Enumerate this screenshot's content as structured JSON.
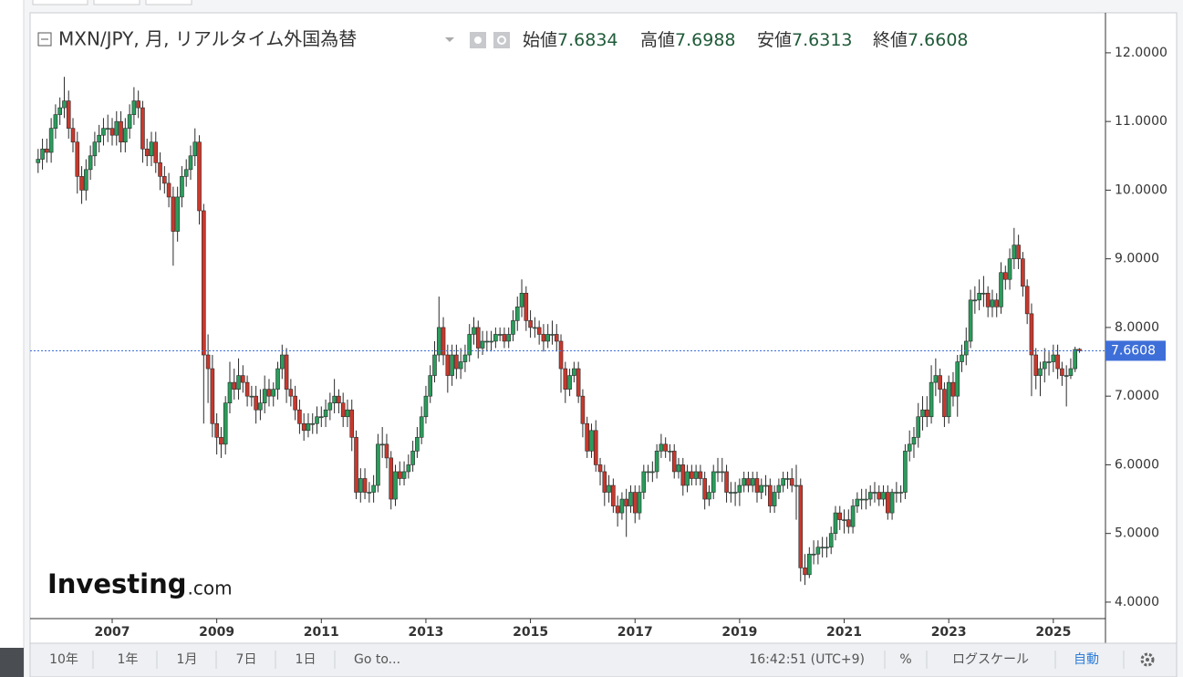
{
  "chart_data": {
    "type": "candlestick",
    "title": "MXN/JPY, 月, リアルタイム外国為替",
    "ohlc_labels": {
      "open": "始値",
      "high": "高値",
      "low": "安値",
      "close": "終値"
    },
    "categories": [
      null,
      null,
      null,
      null,
      null,
      null,
      null,
      null,
      null,
      null,
      null,
      null,
      null,
      null,
      null,
      null,
      null,
      "2007",
      null,
      null,
      null,
      null,
      null,
      null,
      null,
      null,
      null,
      null,
      null,
      null,
      null,
      null,
      null,
      null,
      null,
      null,
      null,
      null,
      null,
      null,
      null,
      "2009",
      null,
      null,
      null,
      null,
      null,
      null,
      null,
      null,
      null,
      null,
      null,
      null,
      null,
      null,
      null,
      null,
      null,
      null,
      null,
      null,
      null,
      null,
      null,
      "2011",
      null,
      null,
      null,
      null,
      null,
      null,
      null,
      null,
      null,
      null,
      null,
      null,
      null,
      null,
      null,
      null,
      null,
      null,
      null,
      null,
      null,
      null,
      null,
      "2013",
      null,
      null,
      null,
      null,
      null,
      null,
      null,
      null,
      null,
      null,
      null,
      null,
      null,
      null,
      null,
      null,
      null,
      null,
      null,
      null,
      null,
      null,
      null,
      "2015",
      null,
      null,
      null,
      null,
      null,
      null,
      null,
      null,
      null,
      null,
      null,
      null,
      null,
      null,
      null,
      null,
      null,
      null,
      null,
      null,
      null,
      null,
      null,
      "2017",
      null,
      null,
      null,
      null,
      null,
      null,
      null,
      null,
      null,
      null,
      null,
      null,
      null,
      null,
      null,
      null,
      null,
      null,
      null,
      null,
      null,
      null,
      null,
      "2019",
      null,
      null,
      null,
      null,
      null,
      null,
      null,
      null,
      null,
      null,
      null,
      null,
      null,
      null,
      null,
      null,
      null,
      null,
      null,
      null,
      null,
      null,
      null,
      "2021",
      null,
      null,
      null,
      null,
      null,
      null,
      null,
      null,
      null,
      null,
      null,
      null,
      null,
      null,
      null,
      null,
      null,
      null,
      null,
      null,
      null,
      null,
      null,
      "2023",
      null,
      null,
      null,
      null,
      null,
      null,
      null,
      null,
      null,
      null,
      null,
      null,
      null,
      null,
      null,
      null,
      null,
      null,
      null,
      null,
      null,
      null,
      null,
      "2025",
      null,
      null,
      null,
      null,
      null,
      null
    ],
    "open": [
      10.4,
      10.45,
      10.6,
      10.55,
      10.9,
      11.1,
      11.2,
      11.3,
      10.9,
      10.7,
      10.2,
      10.0,
      10.3,
      10.5,
      10.7,
      10.8,
      10.9,
      10.9,
      10.8,
      11.0,
      10.7,
      10.9,
      11.1,
      11.3,
      11.2,
      10.6,
      10.5,
      10.7,
      10.4,
      10.2,
      10.1,
      9.9,
      9.4,
      9.9,
      10.2,
      10.3,
      10.5,
      10.7,
      9.7,
      7.6,
      7.4,
      6.6,
      6.4,
      6.3,
      6.9,
      7.2,
      7.1,
      7.3,
      7.2,
      7.0,
      7.0,
      6.8,
      6.9,
      7.1,
      7.0,
      7.1,
      7.4,
      7.6,
      7.1,
      7.0,
      6.8,
      6.6,
      6.5,
      6.6,
      6.6,
      6.7,
      6.7,
      6.8,
      6.9,
      7.0,
      6.9,
      6.7,
      6.8,
      6.4,
      5.6,
      5.8,
      5.6,
      5.6,
      5.7,
      6.3,
      6.3,
      6.1,
      5.5,
      5.9,
      5.8,
      5.9,
      6.0,
      6.2,
      6.4,
      6.7,
      7.0,
      7.3,
      7.6,
      8.0,
      7.6,
      7.3,
      7.6,
      7.4,
      7.5,
      7.6,
      7.9,
      8.0,
      7.7,
      7.8,
      7.8,
      7.8,
      7.9,
      7.9,
      7.8,
      7.9,
      8.1,
      8.3,
      8.5,
      8.1,
      8.0,
      8.0,
      7.9,
      7.8,
      7.9,
      7.9,
      7.8,
      7.4,
      7.1,
      7.3,
      7.4,
      7.0,
      6.6,
      6.2,
      6.5,
      6.0,
      5.9,
      5.6,
      5.7,
      5.4,
      5.3,
      5.5,
      5.4,
      5.6,
      5.3,
      5.6,
      5.9,
      5.9,
      5.9,
      6.2,
      6.3,
      6.2,
      6.2,
      5.9,
      6.0,
      5.7,
      5.9,
      5.8,
      5.9,
      5.8,
      5.5,
      5.6,
      5.9,
      5.9,
      5.9,
      5.6,
      5.6,
      5.6,
      5.7,
      5.8,
      5.7,
      5.8,
      5.6,
      5.7,
      5.7,
      5.4,
      5.6,
      5.7,
      5.8,
      5.8,
      5.7,
      5.7,
      4.5,
      4.4,
      4.7,
      4.7,
      4.8,
      4.8,
      4.8,
      5.0,
      5.3,
      5.2,
      5.2,
      5.1,
      5.4,
      5.5,
      5.5,
      5.5,
      5.6,
      5.6,
      5.5,
      5.6,
      5.3,
      5.6,
      5.6,
      5.6,
      6.2,
      6.3,
      6.4,
      6.7,
      6.8,
      6.7,
      7.2,
      7.3,
      7.1,
      6.7,
      7.2,
      7.0,
      7.5,
      7.6,
      7.8,
      8.4,
      8.4,
      8.5,
      8.5,
      8.3,
      8.4,
      8.3,
      8.8,
      8.7,
      9.0,
      9.2,
      9.0,
      8.6,
      8.2,
      7.6,
      7.3,
      7.4,
      7.5,
      7.5,
      7.6,
      7.4,
      7.3,
      7.3,
      7.4,
      7.6834
    ],
    "high": [
      10.6,
      10.75,
      10.75,
      11.05,
      11.25,
      11.35,
      11.65,
      11.45,
      11.05,
      10.85,
      10.35,
      10.45,
      10.65,
      10.85,
      10.95,
      11.05,
      11.1,
      11.05,
      11.15,
      11.15,
      11.05,
      11.25,
      11.5,
      11.45,
      11.3,
      10.75,
      10.85,
      10.85,
      10.55,
      10.35,
      10.25,
      10.05,
      10.05,
      10.35,
      10.45,
      10.65,
      10.9,
      10.8,
      9.8,
      7.9,
      7.6,
      6.75,
      6.55,
      7.0,
      7.5,
      7.4,
      7.55,
      7.45,
      7.3,
      7.15,
      7.15,
      7.1,
      7.3,
      7.25,
      7.2,
      7.5,
      7.75,
      7.7,
      7.25,
      7.15,
      6.95,
      6.75,
      6.75,
      6.75,
      6.85,
      6.85,
      6.95,
      7.05,
      7.25,
      7.1,
      7.05,
      6.95,
      6.95,
      6.5,
      5.95,
      5.95,
      5.75,
      5.85,
      6.45,
      6.55,
      6.45,
      6.2,
      6.0,
      6.05,
      6.05,
      6.15,
      6.35,
      6.55,
      6.85,
      7.15,
      7.45,
      7.8,
      8.45,
      8.15,
      7.75,
      7.75,
      7.75,
      7.7,
      7.75,
      8.05,
      8.15,
      8.1,
      7.95,
      7.95,
      7.95,
      8.0,
      8.0,
      8.0,
      8.0,
      8.25,
      8.45,
      8.7,
      8.6,
      8.25,
      8.15,
      8.1,
      8.05,
      8.05,
      8.1,
      8.05,
      7.9,
      7.5,
      7.4,
      7.5,
      7.5,
      7.1,
      6.7,
      6.6,
      6.65,
      6.1,
      6.0,
      5.85,
      5.8,
      5.55,
      5.6,
      5.65,
      5.7,
      5.7,
      5.7,
      6.0,
      6.0,
      6.05,
      6.3,
      6.45,
      6.4,
      6.3,
      6.3,
      6.1,
      6.1,
      6.0,
      6.0,
      6.0,
      6.0,
      5.9,
      5.7,
      6.0,
      6.1,
      6.1,
      6.0,
      5.75,
      5.75,
      5.8,
      5.9,
      5.9,
      5.9,
      5.9,
      5.8,
      5.85,
      5.8,
      5.7,
      5.8,
      5.9,
      5.9,
      5.95,
      6.0,
      5.8,
      4.7,
      4.8,
      4.9,
      4.9,
      4.95,
      4.95,
      5.1,
      5.4,
      5.4,
      5.35,
      5.35,
      5.5,
      5.6,
      5.65,
      5.65,
      5.7,
      5.75,
      5.7,
      5.7,
      5.7,
      5.65,
      5.75,
      5.7,
      6.3,
      6.5,
      6.55,
      6.9,
      7.0,
      7.0,
      7.45,
      7.55,
      7.4,
      7.2,
      7.3,
      7.35,
      7.6,
      7.75,
      8.0,
      8.55,
      8.6,
      8.7,
      8.75,
      8.6,
      8.55,
      8.5,
      8.95,
      8.9,
      9.15,
      9.45,
      9.35,
      9.1,
      8.7,
      8.35,
      7.7,
      7.5,
      7.7,
      7.65,
      7.75,
      7.75,
      7.5,
      7.45,
      7.55,
      7.72,
      7.6988
    ],
    "low": [
      10.25,
      10.3,
      10.4,
      10.4,
      10.75,
      10.95,
      11.05,
      10.75,
      10.55,
      9.95,
      9.8,
      9.85,
      10.15,
      10.35,
      10.55,
      10.65,
      10.7,
      10.65,
      10.65,
      10.55,
      10.55,
      10.75,
      10.95,
      11.05,
      10.4,
      10.35,
      10.35,
      10.25,
      10.0,
      9.95,
      9.75,
      8.9,
      9.25,
      9.75,
      10.05,
      10.15,
      10.35,
      9.5,
      6.6,
      6.9,
      6.4,
      6.15,
      6.1,
      6.15,
      6.75,
      6.95,
      6.95,
      7.05,
      6.85,
      6.85,
      6.6,
      6.65,
      6.75,
      6.85,
      6.85,
      6.95,
      7.25,
      6.9,
      6.85,
      6.65,
      6.45,
      6.35,
      6.4,
      6.45,
      6.45,
      6.55,
      6.55,
      6.65,
      6.75,
      6.75,
      6.55,
      6.55,
      6.2,
      5.5,
      5.45,
      5.5,
      5.45,
      5.45,
      5.6,
      6.1,
      5.95,
      5.35,
      5.4,
      5.7,
      5.7,
      5.8,
      5.9,
      6.1,
      6.3,
      6.6,
      6.9,
      7.2,
      7.5,
      7.45,
      7.05,
      7.15,
      7.25,
      7.25,
      7.35,
      7.5,
      7.75,
      7.55,
      7.6,
      7.65,
      7.65,
      7.7,
      7.8,
      7.7,
      7.7,
      7.8,
      7.95,
      8.15,
      7.95,
      7.85,
      7.85,
      7.75,
      7.65,
      7.7,
      7.75,
      7.65,
      7.05,
      6.9,
      7.0,
      7.2,
      6.9,
      6.4,
      6.1,
      6.1,
      5.9,
      5.7,
      5.4,
      5.45,
      5.3,
      5.1,
      5.2,
      4.95,
      5.3,
      5.15,
      5.2,
      5.5,
      5.75,
      5.75,
      5.8,
      6.1,
      6.1,
      6.05,
      5.8,
      5.8,
      5.55,
      5.6,
      5.7,
      5.7,
      5.7,
      5.35,
      5.4,
      5.5,
      5.75,
      5.75,
      5.45,
      5.45,
      5.4,
      5.4,
      5.6,
      5.6,
      5.6,
      5.45,
      5.5,
      5.55,
      5.3,
      5.3,
      5.5,
      5.6,
      5.65,
      5.6,
      5.2,
      4.3,
      4.25,
      4.35,
      4.55,
      4.55,
      4.65,
      4.65,
      4.7,
      4.9,
      5.05,
      5.0,
      5.0,
      5.0,
      5.3,
      5.35,
      5.35,
      5.4,
      5.45,
      5.4,
      5.4,
      5.2,
      5.2,
      5.45,
      5.45,
      5.5,
      6.05,
      6.1,
      6.25,
      6.5,
      6.55,
      6.6,
      7.0,
      6.9,
      6.55,
      6.6,
      6.85,
      6.7,
      7.35,
      7.45,
      7.7,
      8.2,
      8.25,
      8.3,
      8.15,
      8.15,
      8.15,
      8.2,
      8.55,
      8.55,
      8.85,
      8.85,
      8.45,
      8.05,
      7.0,
      7.1,
      7.0,
      7.2,
      7.3,
      7.35,
      7.25,
      7.15,
      6.85,
      7.25,
      7.35,
      7.6313
    ],
    "close": [
      10.45,
      10.6,
      10.55,
      10.9,
      11.1,
      11.2,
      11.3,
      10.9,
      10.7,
      10.2,
      10.0,
      10.3,
      10.5,
      10.7,
      10.8,
      10.9,
      10.9,
      10.8,
      11.0,
      10.7,
      10.9,
      11.1,
      11.3,
      11.2,
      10.6,
      10.5,
      10.7,
      10.4,
      10.2,
      10.1,
      9.9,
      9.4,
      9.9,
      10.2,
      10.3,
      10.5,
      10.7,
      9.7,
      7.6,
      7.4,
      6.6,
      6.4,
      6.3,
      6.9,
      7.2,
      7.1,
      7.3,
      7.2,
      7.0,
      7.0,
      6.8,
      6.9,
      7.1,
      7.0,
      7.1,
      7.4,
      7.6,
      7.1,
      7.0,
      6.8,
      6.6,
      6.5,
      6.6,
      6.6,
      6.7,
      6.7,
      6.8,
      6.9,
      7.0,
      6.9,
      6.7,
      6.8,
      6.4,
      5.6,
      5.8,
      5.6,
      5.6,
      5.7,
      6.3,
      6.3,
      6.1,
      5.5,
      5.9,
      5.8,
      5.9,
      6.0,
      6.2,
      6.4,
      6.7,
      7.0,
      7.3,
      7.6,
      8.0,
      7.6,
      7.3,
      7.6,
      7.4,
      7.5,
      7.6,
      7.9,
      8.0,
      7.7,
      7.8,
      7.8,
      7.8,
      7.9,
      7.9,
      7.8,
      7.9,
      8.1,
      8.3,
      8.5,
      8.1,
      8.0,
      8.0,
      7.9,
      7.8,
      7.9,
      7.9,
      7.8,
      7.4,
      7.1,
      7.3,
      7.4,
      7.0,
      6.6,
      6.2,
      6.5,
      6.0,
      5.9,
      5.6,
      5.7,
      5.4,
      5.3,
      5.5,
      5.4,
      5.6,
      5.3,
      5.6,
      5.9,
      5.9,
      5.9,
      6.2,
      6.3,
      6.2,
      6.2,
      5.9,
      6.0,
      5.7,
      5.9,
      5.8,
      5.9,
      5.8,
      5.5,
      5.6,
      5.9,
      5.9,
      5.9,
      5.6,
      5.6,
      5.6,
      5.7,
      5.8,
      5.7,
      5.8,
      5.6,
      5.7,
      5.7,
      5.4,
      5.6,
      5.7,
      5.8,
      5.8,
      5.7,
      5.7,
      4.5,
      4.4,
      4.7,
      4.7,
      4.8,
      4.8,
      4.8,
      5.0,
      5.3,
      5.2,
      5.2,
      5.1,
      5.4,
      5.5,
      5.5,
      5.5,
      5.6,
      5.6,
      5.5,
      5.6,
      5.3,
      5.6,
      5.6,
      5.6,
      6.2,
      6.3,
      6.4,
      6.7,
      6.8,
      6.7,
      7.2,
      7.3,
      7.1,
      6.7,
      7.2,
      7.0,
      7.5,
      7.6,
      7.8,
      8.4,
      8.4,
      8.5,
      8.5,
      8.3,
      8.4,
      8.3,
      8.8,
      8.7,
      9.0,
      9.2,
      9.0,
      8.6,
      8.2,
      7.6,
      7.3,
      7.4,
      7.5,
      7.5,
      7.6,
      7.4,
      7.3,
      7.3,
      7.4,
      7.68,
      7.6608
    ],
    "up_color": "#2a9d5c",
    "down_color": "#c9382d",
    "last_price_color": "#3e6fd8",
    "ylim": [
      3.76,
      12.57
    ],
    "yticks": [
      {
        "value": 4,
        "label": "4.0000"
      },
      {
        "value": 5,
        "label": "5.0000"
      },
      {
        "value": 6,
        "label": "6.0000"
      },
      {
        "value": 7,
        "label": "7.0000"
      },
      {
        "value": 8,
        "label": "8.0000"
      },
      {
        "value": 9,
        "label": "9.0000"
      },
      {
        "value": 10,
        "label": "10.0000"
      },
      {
        "value": 11,
        "label": "11.0000"
      },
      {
        "value": 12,
        "label": "12.0000"
      }
    ],
    "last_price_line": true,
    "grid": false
  },
  "watermark": {
    "brand": "Investing",
    "suffix": ".com"
  },
  "toolbar": {
    "ranges": [
      "10年",
      "1年",
      "1月",
      "7日",
      "1日"
    ],
    "goto": "Go to...",
    "time": "16:42:51 (UTC+9)",
    "percent": "%",
    "log_scale": "ログスケール",
    "auto": "自動"
  }
}
